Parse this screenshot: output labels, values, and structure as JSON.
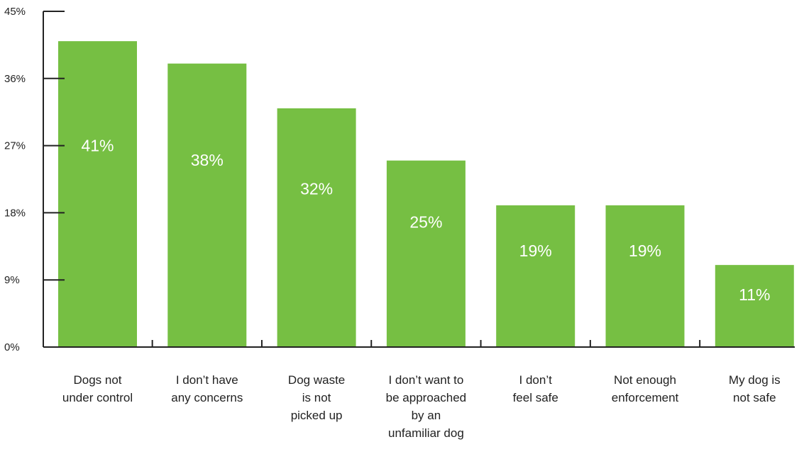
{
  "chart_data": {
    "type": "bar",
    "categories": [
      [
        "Dogs not",
        "under control"
      ],
      [
        "I don’t have",
        "any concerns"
      ],
      [
        "Dog waste",
        "is not",
        "picked up"
      ],
      [
        "I don’t want to",
        "be approached",
        "by an",
        "unfamiliar dog"
      ],
      [
        "I don’t",
        "feel safe"
      ],
      [
        "Not enough",
        "enforcement"
      ],
      [
        "My dog is",
        "not safe"
      ]
    ],
    "values": [
      41,
      38,
      32,
      25,
      19,
      19,
      11
    ],
    "value_labels": [
      "41%",
      "38%",
      "32%",
      "25%",
      "19%",
      "19%",
      "11%"
    ],
    "yticks": [
      0,
      9,
      18,
      27,
      36,
      45
    ],
    "ytick_labels": [
      "0%",
      "9%",
      "18%",
      "27%",
      "36%",
      "45%"
    ],
    "ylim": [
      0,
      45
    ],
    "title": "",
    "xlabel": "",
    "ylabel": "",
    "grid": false,
    "bar_color": "#76bf43",
    "label_color": "#ffffff",
    "axis_color": "#222222"
  }
}
